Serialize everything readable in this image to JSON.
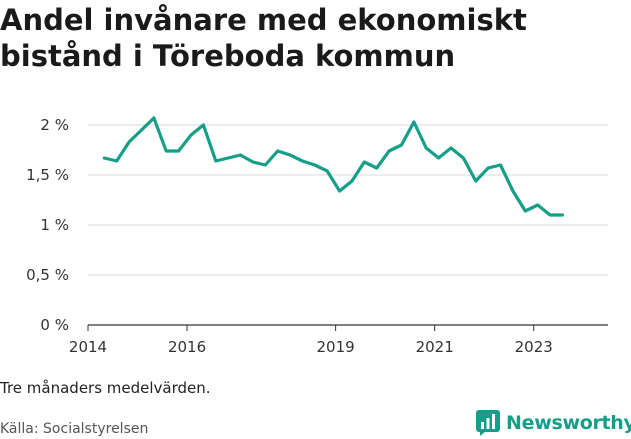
{
  "brand": {
    "name": "Newsworthy",
    "color": "#159e88"
  },
  "footer": {
    "note": "Tre månaders medelvärden.",
    "source": "Källa: Socialstyrelsen"
  },
  "chart_data": {
    "type": "line",
    "title": "Andel invånare med ekonomiskt bistånd i Töreboda kommun",
    "xlabel": "",
    "ylabel": "",
    "xlim": [
      2014,
      2024.5
    ],
    "ylim": [
      0,
      2
    ],
    "grid": true,
    "line_color": "#159e88",
    "y_ticks": [
      {
        "value": 0,
        "label": "0 %"
      },
      {
        "value": 0.5,
        "label": "0,5 %"
      },
      {
        "value": 1,
        "label": "1 %"
      },
      {
        "value": 1.5,
        "label": "1,5 %"
      },
      {
        "value": 2,
        "label": "2 %"
      }
    ],
    "x_ticks": [
      {
        "value": 2014,
        "label": "2014"
      },
      {
        "value": 2016,
        "label": "2016"
      },
      {
        "value": 2019,
        "label": "2019"
      },
      {
        "value": 2021,
        "label": "2021"
      },
      {
        "value": 2023,
        "label": "2023"
      }
    ],
    "series": [
      {
        "x": [
          2014.33,
          2014.58,
          2014.83,
          2015.08,
          2015.33,
          2015.58,
          2015.83,
          2016.08,
          2016.33,
          2016.58,
          2016.83,
          2017.08,
          2017.33,
          2017.58,
          2017.83,
          2018.08,
          2018.33,
          2018.58,
          2018.83,
          2019.08,
          2019.33,
          2019.58,
          2019.83,
          2020.08,
          2020.33,
          2020.58,
          2020.83,
          2021.08,
          2021.33,
          2021.58,
          2021.83,
          2022.08,
          2022.33,
          2022.58,
          2022.83,
          2023.08,
          2023.33,
          2023.58
        ],
        "values": [
          1.67,
          1.64,
          1.83,
          1.95,
          2.07,
          1.74,
          1.74,
          1.9,
          2.0,
          1.64,
          1.67,
          1.7,
          1.63,
          1.6,
          1.74,
          1.7,
          1.64,
          1.6,
          1.54,
          1.34,
          1.44,
          1.63,
          1.57,
          1.74,
          1.8,
          2.03,
          1.77,
          1.67,
          1.77,
          1.67,
          1.44,
          1.57,
          1.6,
          1.34,
          1.14,
          1.2,
          1.1,
          1.1
        ]
      }
    ]
  }
}
